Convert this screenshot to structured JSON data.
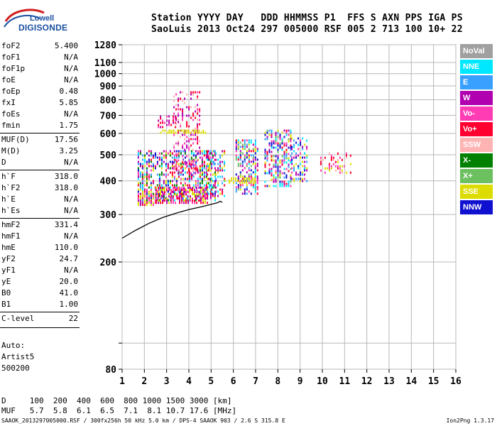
{
  "header": {
    "line1": "Station YYYY DAY   DDD HHMMSS P1  FFS S AXN PPS IGA PS",
    "line2": "SaoLuis 2013 Oct24 297 005000 RSF 005 2 713 100 10+ 22"
  },
  "logo": {
    "brand": "Lowell",
    "product": "DIGISONDE"
  },
  "params": [
    {
      "name": "foF2",
      "value": "5.400"
    },
    {
      "name": "foF1",
      "value": "N/A"
    },
    {
      "name": "foF1p",
      "value": "N/A"
    },
    {
      "name": "foE",
      "value": "N/A"
    },
    {
      "name": "foEp",
      "value": "0.48"
    },
    {
      "name": "fxI",
      "value": "5.85"
    },
    {
      "name": "foEs",
      "value": "N/A"
    },
    {
      "name": "fmin",
      "value": "1.75"
    },
    {
      "name": "MUF(D)",
      "value": "17.56"
    },
    {
      "name": "M(D)",
      "value": "3.25"
    },
    {
      "name": "D",
      "value": "N/A"
    },
    {
      "name": "h`F",
      "value": "318.0"
    },
    {
      "name": "h`F2",
      "value": "318.0"
    },
    {
      "name": "h`E",
      "value": "N/A"
    },
    {
      "name": "h`Es",
      "value": "N/A"
    },
    {
      "name": "hmF2",
      "value": "331.4"
    },
    {
      "name": "hmF1",
      "value": "N/A"
    },
    {
      "name": "hmE",
      "value": "110.0"
    },
    {
      "name": "yF2",
      "value": "24.7"
    },
    {
      "name": "yF1",
      "value": "N/A"
    },
    {
      "name": "yE",
      "value": "20.0"
    },
    {
      "name": "B0",
      "value": "41.0"
    },
    {
      "name": "B1",
      "value": "1.00"
    },
    {
      "name": "C-level",
      "value": "22"
    }
  ],
  "auto": {
    "line1": "Auto:",
    "line2": "Artist5",
    "line3": "500200"
  },
  "bottom": {
    "d_line": "D     100  200  400  600  800 1000 1500 3000 [km]",
    "muf_line": "MUF   5.7  5.8  6.1  6.5  7.1  8.1 10.7 17.6 [MHz]",
    "footer": "SAAOK_2013297005000.RSF / 300fx256h 50 kHz 5.0 km / DPS-4 SAAOK 903 / 2.6 S 315.8 E",
    "version": "Ion2Png 1.3.17"
  },
  "legend": [
    {
      "label": "NoVal",
      "bg": "#a0a0a0",
      "fg": "#ffffff"
    },
    {
      "label": "NNE",
      "bg": "#00e8ff",
      "fg": "#ffffff"
    },
    {
      "label": "E",
      "bg": "#3aa0ff",
      "fg": "#ffffff"
    },
    {
      "label": "W",
      "bg": "#b000b0",
      "fg": "#ffffff"
    },
    {
      "label": "Vo-",
      "bg": "#ff3cb4",
      "fg": "#ffffff"
    },
    {
      "label": "Vo+",
      "bg": "#ff0030",
      "fg": "#ffffff"
    },
    {
      "label": "SSW",
      "bg": "#ffb4b4",
      "fg": "#ffffff"
    },
    {
      "label": "X-",
      "bg": "#008000",
      "fg": "#ffffff"
    },
    {
      "label": "X+",
      "bg": "#6cc060",
      "fg": "#ffffff"
    },
    {
      "label": "SSE",
      "bg": "#dcdc00",
      "fg": "#ffffff"
    },
    {
      "label": "NNW",
      "bg": "#1010d0",
      "fg": "#ffffff"
    }
  ],
  "chart_data": {
    "type": "scatter",
    "title": "",
    "xlabel": "",
    "ylabel": "",
    "xlim": [
      1,
      16
    ],
    "ylim": [
      80,
      1280
    ],
    "y_scale": "log",
    "x_ticks": [
      1,
      2,
      3,
      4,
      5,
      6,
      7,
      8,
      9,
      10,
      11,
      12,
      13,
      14,
      15,
      16
    ],
    "y_ticks": [
      80,
      100,
      200,
      300,
      400,
      500,
      600,
      700,
      800,
      900,
      1000,
      1100,
      1280
    ],
    "y_tick_labels": [
      "80",
      "",
      "200",
      "300",
      "400",
      "500",
      "600",
      "700",
      "800",
      "900",
      "1000",
      "1100",
      "1280"
    ],
    "grid": true,
    "trace": {
      "name": "",
      "color": "#000000",
      "x": [
        1.0,
        1.6,
        2.2,
        2.8,
        3.4,
        4.0,
        4.6,
        5.0,
        5.3,
        5.4,
        5.5
      ],
      "y": [
        245,
        262,
        278,
        292,
        303,
        313,
        321,
        327,
        332,
        336,
        333
      ]
    },
    "clusters": [
      {
        "x": [
          1.7,
          2.5
        ],
        "y": [
          325,
          360
        ],
        "colors": [
          "#ff0030",
          "#b000b0",
          "#ff3cb4",
          "#dcdc00"
        ],
        "density": 0.9
      },
      {
        "x": [
          1.7,
          5.2
        ],
        "y": [
          340,
          520
        ],
        "colors": [
          "#ff0030",
          "#b000b0",
          "#ff3cb4",
          "#dcdc00",
          "#00e8ff",
          "#3aa0ff",
          "#008000",
          "#1010d0"
        ],
        "density": 0.55
      },
      {
        "x": [
          2.5,
          4.8
        ],
        "y": [
          330,
          380
        ],
        "colors": [
          "#ff0030",
          "#b000b0",
          "#ff3cb4",
          "#dcdc00"
        ],
        "density": 0.8
      },
      {
        "x": [
          2.6,
          3.4
        ],
        "y": [
          630,
          700
        ],
        "colors": [
          "#b000b0",
          "#ff3cb4",
          "#ff0030"
        ],
        "density": 0.6
      },
      {
        "x": [
          3.3,
          4.5
        ],
        "y": [
          420,
          860
        ],
        "colors": [
          "#b000b0",
          "#ff3cb4",
          "#ff0030",
          "#ffb4b4"
        ],
        "density": 0.35
      },
      {
        "x": [
          2.7,
          4.8
        ],
        "y": [
          600,
          620
        ],
        "colors": [
          "#dcdc00"
        ],
        "density": 0.7
      },
      {
        "x": [
          4.8,
          5.6
        ],
        "y": [
          350,
          520
        ],
        "colors": [
          "#ff0030",
          "#dcdc00",
          "#b000b0",
          "#3aa0ff",
          "#00e8ff"
        ],
        "density": 0.45
      },
      {
        "x": [
          6.1,
          7.1
        ],
        "y": [
          360,
          570
        ],
        "colors": [
          "#ff0030",
          "#b000b0",
          "#ff3cb4",
          "#00e8ff",
          "#3aa0ff",
          "#1010d0",
          "#dcdc00",
          "#6cc060"
        ],
        "density": 0.55
      },
      {
        "x": [
          7.4,
          8.6
        ],
        "y": [
          380,
          620
        ],
        "colors": [
          "#ff0030",
          "#b000b0",
          "#ff3cb4",
          "#00e8ff",
          "#3aa0ff",
          "#1010d0",
          "#dcdc00",
          "#6cc060"
        ],
        "density": 0.55
      },
      {
        "x": [
          8.6,
          9.3
        ],
        "y": [
          400,
          580
        ],
        "colors": [
          "#b000b0",
          "#00e8ff",
          "#3aa0ff",
          "#1010d0",
          "#dcdc00",
          "#ff3cb4"
        ],
        "density": 0.5
      },
      {
        "x": [
          9.9,
          11.3
        ],
        "y": [
          430,
          510
        ],
        "colors": [
          "#ffb4b4",
          "#ff3cb4",
          "#dcdc00",
          "#ff0030"
        ],
        "density": 0.35
      },
      {
        "x": [
          5.6,
          7.0
        ],
        "y": [
          395,
          412
        ],
        "colors": [
          "#dcdc00"
        ],
        "density": 0.6
      }
    ]
  }
}
